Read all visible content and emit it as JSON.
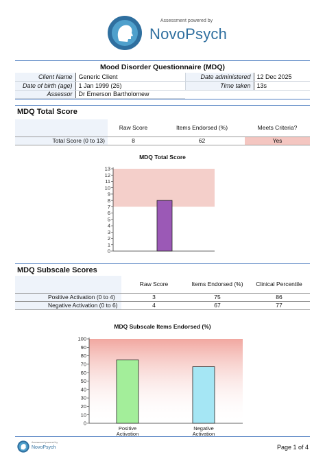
{
  "header": {
    "powered_by": "Assessment powered by",
    "brand": "NovoPsych",
    "brand_color": "#2f6f9f"
  },
  "report": {
    "title": "Mood Disorder Questionnaire (MDQ)",
    "client_name_label": "Client Name",
    "client_name": "Generic Client",
    "dob_label": "Date of birth (age)",
    "dob": "1 Jan 1999 (26)",
    "assessor_label": "Assessor",
    "assessor": "Dr Emerson Bartholomew",
    "date_label": "Date administered",
    "date": "12 Dec 2025",
    "time_label": "Time taken",
    "time": "13s"
  },
  "total": {
    "heading": "MDQ Total Score",
    "columns": [
      "Raw Score",
      "Items Endorsed (%)",
      "Meets Criteria?"
    ],
    "row_label": "Total Score (0 to 13)",
    "raw": "8",
    "pct": "62",
    "criteria": "Yes",
    "criteria_color": "#f4c6c1"
  },
  "subscale": {
    "heading": "MDQ Subscale Scores",
    "columns": [
      "Raw Score",
      "Items Endorsed (%)",
      "Clinical Percentile"
    ],
    "rows": [
      {
        "label": "Positive Activation (0 to 4)",
        "raw": "3",
        "pct": "75",
        "percentile": "86"
      },
      {
        "label": "Negative Activation (0 to 6)",
        "raw": "4",
        "pct": "67",
        "percentile": "77"
      }
    ]
  },
  "chart_data": [
    {
      "type": "bar",
      "title": "MDQ Total Score",
      "categories": [
        ""
      ],
      "values": [
        8
      ],
      "ylim": [
        0,
        13
      ],
      "yticks": [
        0,
        1,
        2,
        3,
        4,
        5,
        6,
        7,
        8,
        9,
        10,
        11,
        12,
        13
      ],
      "threshold_band": [
        7,
        13
      ],
      "bar_color": "#9b59b6",
      "band_color": "#f4cfca"
    },
    {
      "type": "bar",
      "title": "MDQ Subscale Items Endorsed (%)",
      "categories": [
        "Positive Activation",
        "Negative Activation"
      ],
      "values": [
        75,
        67
      ],
      "ylim": [
        0,
        100
      ],
      "yticks": [
        0,
        10,
        20,
        30,
        40,
        50,
        60,
        70,
        80,
        90,
        100
      ],
      "bar_colors": [
        "#a3ee9a",
        "#a5e6f4"
      ],
      "band_color_top": "#f1a7a0"
    }
  ],
  "footer": {
    "brand": "NovoPsych",
    "powered_by": "Assessment powered by",
    "page": "Page 1 of 4"
  }
}
